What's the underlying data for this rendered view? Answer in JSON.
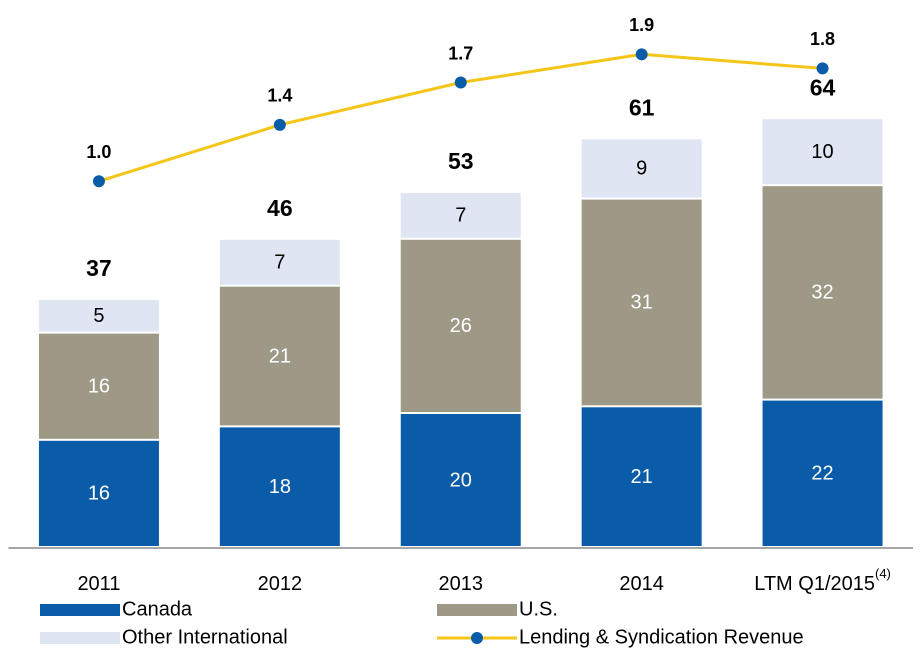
{
  "chart_data": {
    "type": "stacked_bar_line",
    "categories": [
      "2011",
      "2012",
      "2013",
      "2014",
      "LTM Q1/2015"
    ],
    "category_superscripts": [
      null,
      null,
      null,
      null,
      "(4)"
    ],
    "series": [
      {
        "name": "Canada",
        "color": "#0a5ca8",
        "label_color": "#ffffff",
        "values": [
          16,
          18,
          20,
          21,
          22
        ]
      },
      {
        "name": "U.S.",
        "color": "#9e9887",
        "label_color": "#ffffff",
        "values": [
          16,
          21,
          26,
          31,
          32
        ]
      },
      {
        "name": "Other International",
        "color": "#dfe5f2",
        "label_color": "#000000",
        "values": [
          5,
          7,
          7,
          9,
          10
        ]
      },
      {
        "name": "Lending & Syndication Revenue",
        "type": "line",
        "axis": "y2",
        "color": "#f5c518",
        "marker_color": "#0a5ca8",
        "values": [
          1.0,
          1.4,
          1.7,
          1.9,
          1.8
        ],
        "value_labels": [
          "1.0",
          "1.4",
          "1.7",
          "1.9",
          "1.8"
        ]
      }
    ],
    "totals": [
      37,
      46,
      53,
      61,
      64
    ],
    "ylim": [
      0,
      80
    ],
    "y2lim": [
      -1.6,
      2.2
    ]
  }
}
